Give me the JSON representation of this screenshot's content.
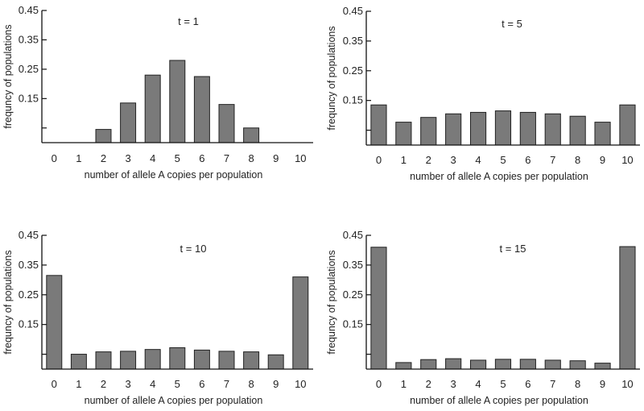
{
  "chart_data": [
    {
      "type": "bar",
      "title": "t = 1",
      "xlabel": "number of allele A copies per population",
      "ylabel": "frequncy of populations",
      "categories": [
        "0",
        "1",
        "2",
        "3",
        "4",
        "5",
        "6",
        "7",
        "8",
        "9",
        "10"
      ],
      "values": [
        0,
        0,
        0.045,
        0.135,
        0.23,
        0.28,
        0.225,
        0.13,
        0.05,
        0,
        0
      ],
      "ylim": [
        0,
        0.45
      ],
      "yticks": [
        "0.15",
        "0.25",
        "0.35",
        "0.45"
      ],
      "color": "#7a7a7a"
    },
    {
      "type": "bar",
      "title": "t = 5",
      "xlabel": "number of allele A copies per population",
      "ylabel": "frequncy of populations",
      "categories": [
        "0",
        "1",
        "2",
        "3",
        "4",
        "5",
        "6",
        "7",
        "8",
        "9",
        "10"
      ],
      "values": [
        0.135,
        0.077,
        0.093,
        0.105,
        0.11,
        0.115,
        0.11,
        0.105,
        0.097,
        0.077,
        0.135
      ],
      "ylim": [
        0,
        0.45
      ],
      "yticks": [
        "0.15",
        "0.25",
        "0.35",
        "0.45"
      ],
      "color": "#7a7a7a"
    },
    {
      "type": "bar",
      "title": "t = 10",
      "xlabel": "number of allele A copies per population",
      "ylabel": "frequncy of populations",
      "categories": [
        "0",
        "1",
        "2",
        "3",
        "4",
        "5",
        "6",
        "7",
        "8",
        "9",
        "10"
      ],
      "values": [
        0.315,
        0.05,
        0.058,
        0.06,
        0.066,
        0.072,
        0.064,
        0.06,
        0.058,
        0.048,
        0.31
      ],
      "ylim": [
        0,
        0.45
      ],
      "yticks": [
        "0.15",
        "0.25",
        "0.35",
        "0.45"
      ],
      "color": "#7a7a7a"
    },
    {
      "type": "bar",
      "title": "t = 15",
      "xlabel": "number of allele A copies per population",
      "ylabel": "frequncy of populations",
      "categories": [
        "0",
        "1",
        "2",
        "3",
        "4",
        "5",
        "6",
        "7",
        "8",
        "9",
        "10"
      ],
      "values": [
        0.41,
        0.022,
        0.032,
        0.035,
        0.03,
        0.033,
        0.033,
        0.03,
        0.028,
        0.02,
        0.412
      ],
      "ylim": [
        0,
        0.45
      ],
      "yticks": [
        "0.15",
        "0.25",
        "0.35",
        "0.45"
      ],
      "color": "#7a7a7a"
    }
  ]
}
